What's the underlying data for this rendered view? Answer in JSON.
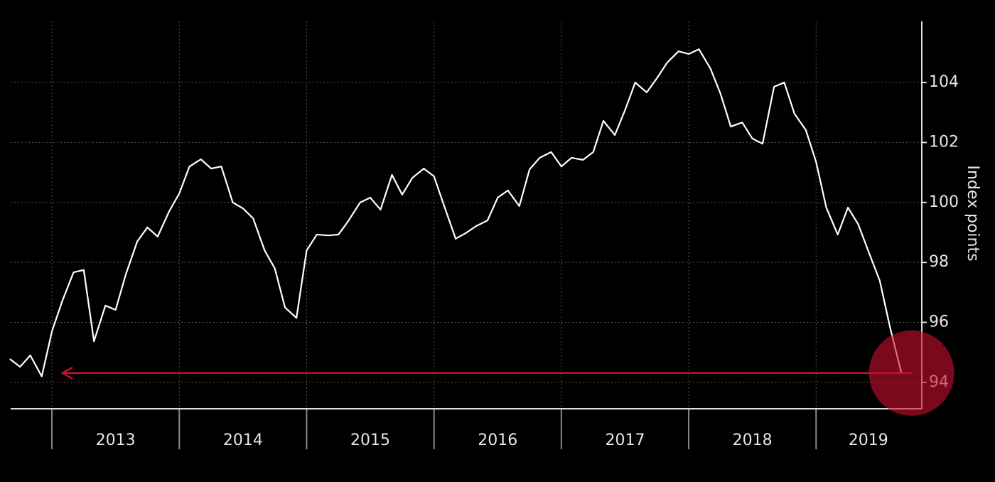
{
  "chart_data": {
    "type": "line",
    "y_axis_label": "Index points",
    "x": [
      2012.67,
      2012.75,
      2012.83,
      2012.92,
      2013.0,
      2013.08,
      2013.17,
      2013.25,
      2013.33,
      2013.42,
      2013.5,
      2013.58,
      2013.67,
      2013.75,
      2013.83,
      2013.92,
      2014.0,
      2014.08,
      2014.17,
      2014.25,
      2014.33,
      2014.42,
      2014.5,
      2014.58,
      2014.67,
      2014.75,
      2014.83,
      2014.92,
      2015.0,
      2015.08,
      2015.17,
      2015.25,
      2015.33,
      2015.42,
      2015.5,
      2015.58,
      2015.67,
      2015.75,
      2015.83,
      2015.92,
      2016.0,
      2016.08,
      2016.17,
      2016.25,
      2016.33,
      2016.42,
      2016.5,
      2016.58,
      2016.67,
      2016.75,
      2016.83,
      2016.92,
      2017.0,
      2017.08,
      2017.17,
      2017.25,
      2017.33,
      2017.42,
      2017.5,
      2017.58,
      2017.67,
      2017.75,
      2017.83,
      2017.92,
      2018.0,
      2018.08,
      2018.17,
      2018.25,
      2018.33,
      2018.42,
      2018.5,
      2018.58,
      2018.67,
      2018.75,
      2018.83,
      2018.92,
      2019.0,
      2019.08,
      2019.17,
      2019.25,
      2019.33,
      2019.42,
      2019.5,
      2019.58,
      2019.67,
      2019.75
    ],
    "values": [
      94.78,
      94.52,
      94.9,
      94.2,
      95.7,
      96.7,
      97.67,
      97.75,
      95.37,
      96.56,
      96.42,
      97.6,
      98.7,
      99.17,
      98.86,
      99.7,
      100.3,
      101.2,
      101.44,
      101.13,
      101.2,
      100.0,
      99.8,
      99.47,
      98.4,
      97.8,
      96.5,
      96.15,
      98.4,
      98.93,
      98.9,
      98.93,
      99.4,
      100.0,
      100.16,
      99.76,
      100.92,
      100.26,
      100.82,
      101.13,
      100.87,
      99.88,
      98.79,
      98.98,
      99.21,
      99.4,
      100.16,
      100.4,
      99.88,
      101.1,
      101.49,
      101.68,
      101.2,
      101.49,
      101.42,
      101.68,
      102.72,
      102.25,
      103.08,
      104.0,
      103.67,
      104.14,
      104.66,
      105.04,
      104.95,
      105.11,
      104.47,
      103.62,
      102.53,
      102.67,
      102.13,
      101.96,
      103.86,
      104.0,
      102.96,
      102.41,
      101.35,
      99.83,
      98.93,
      99.83,
      99.28,
      98.27,
      97.39,
      95.85,
      94.31,
      94.31
    ],
    "color": "#ffffff",
    "highlight_color": "#c8102e",
    "xlim": [
      2012.676,
      2019.83
    ],
    "ylim": [
      93.12,
      106.04
    ],
    "yticks": [
      94,
      96,
      98,
      100,
      102,
      104
    ],
    "xticks": [
      2013,
      2014,
      2015,
      2016,
      2017,
      2018,
      2019
    ],
    "year_labels": [
      {
        "value": 2013.5,
        "label": "2013"
      },
      {
        "value": 2014.5,
        "label": "2014"
      },
      {
        "value": 2015.5,
        "label": "2015"
      },
      {
        "value": 2016.5,
        "label": "2016"
      },
      {
        "value": 2017.5,
        "label": "2017"
      },
      {
        "value": 2018.5,
        "label": "2018"
      },
      {
        "value": 2019.41,
        "label": "2019"
      }
    ],
    "grid": true
  }
}
